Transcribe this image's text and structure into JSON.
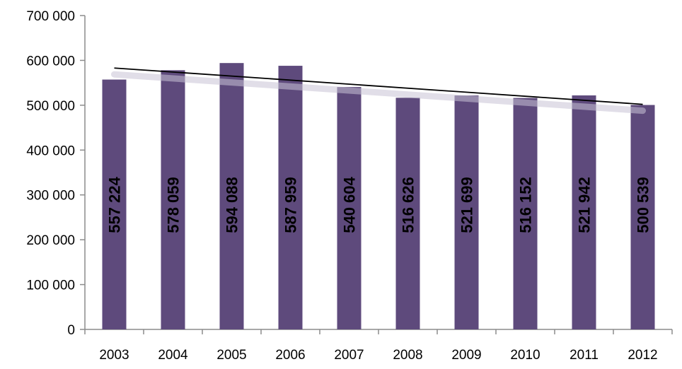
{
  "chart_data": {
    "type": "bar",
    "categories": [
      "2003",
      "2004",
      "2005",
      "2006",
      "2007",
      "2008",
      "2009",
      "2010",
      "2011",
      "2012"
    ],
    "values": [
      557224,
      578059,
      594088,
      587959,
      540604,
      516626,
      521699,
      516152,
      521942,
      500539
    ],
    "data_labels": [
      "557 224",
      "578 059",
      "594 088",
      "587 959",
      "540 604",
      "516 626",
      "521 699",
      "516 152",
      "521 942",
      "500 539"
    ],
    "y_ticks": [
      0,
      100000,
      200000,
      300000,
      400000,
      500000,
      600000,
      700000
    ],
    "y_tick_labels": [
      "0",
      "100 000",
      "200 000",
      "300 000",
      "400 000",
      "500 000",
      "600 000",
      "700 000"
    ],
    "ylim": [
      0,
      700000
    ],
    "trendline": {
      "type": "linear",
      "start": 583000,
      "end": 502000
    },
    "grid": false,
    "legend": "none",
    "colors": {
      "bar": "#5e4a7c",
      "trend": "#000000",
      "axis": "#8c8c8c"
    }
  }
}
